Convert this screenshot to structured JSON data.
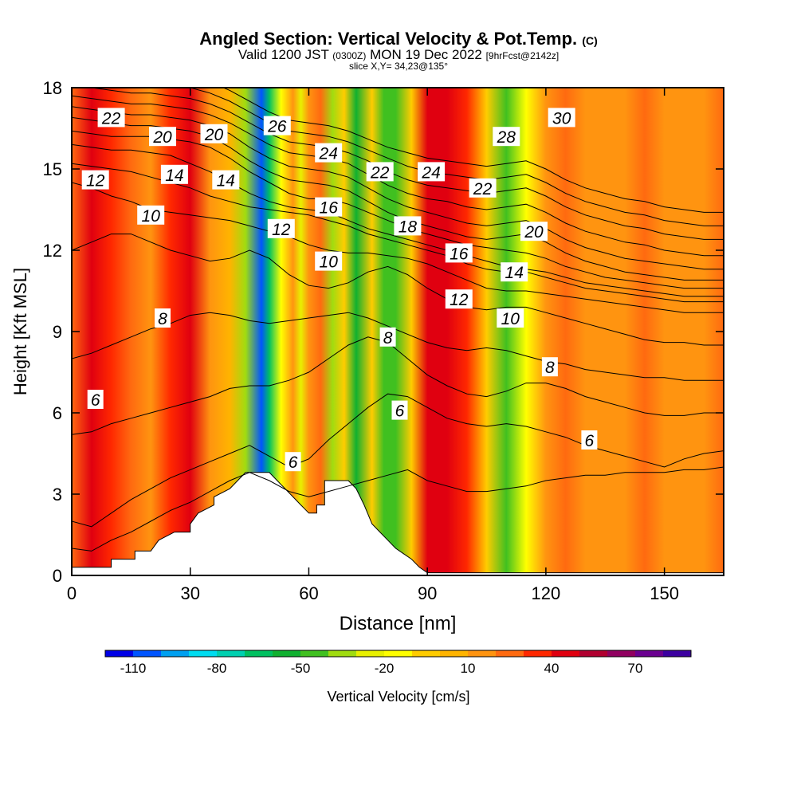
{
  "chart_data": {
    "type": "contour",
    "title": "Angled Section: Vertical Velocity & Pot.Temp.",
    "title_tag": "(C)",
    "subtitle": {
      "valid_prefix": "Valid 1200 JST",
      "valid_utc": "(0300Z)",
      "valid_date": "MON 19 Dec 2022",
      "forecast": "[9hrFcst@2142z]"
    },
    "slice_label": "slice X,Y= 34,23@135°",
    "xlabel": "Distance [nm]",
    "ylabel": "Height [Kft MSL]",
    "xlim": [
      0,
      165
    ],
    "ylim": [
      0,
      18
    ],
    "x_ticks": [
      0,
      30,
      60,
      90,
      120,
      150
    ],
    "y_ticks": [
      0,
      3,
      6,
      9,
      12,
      15,
      18
    ],
    "colorbar": {
      "label": "Vertical Velocity [cm/s]",
      "min": -120,
      "max": 90,
      "step": 10,
      "tick_labels": [
        -110,
        -80,
        -50,
        -20,
        10,
        40,
        70
      ],
      "colors": [
        "#0000e6",
        "#0055ff",
        "#00a0f0",
        "#00dcf0",
        "#00d0b0",
        "#00c060",
        "#10b030",
        "#40c020",
        "#a0dc10",
        "#e8f000",
        "#ffff00",
        "#ffcc00",
        "#ffb400",
        "#ff9410",
        "#ff6a10",
        "#ff2800",
        "#e00010",
        "#b00030",
        "#900060",
        "#6a0090",
        "#3c00a0"
      ]
    },
    "velocity_columns": [
      {
        "x": 0,
        "value": 20
      },
      {
        "x": 5,
        "value": 45
      },
      {
        "x": 10,
        "value": 35
      },
      {
        "x": 15,
        "value": 20
      },
      {
        "x": 20,
        "value": 15
      },
      {
        "x": 25,
        "value": 35
      },
      {
        "x": 30,
        "value": 40
      },
      {
        "x": 35,
        "value": 15
      },
      {
        "x": 40,
        "value": 5
      },
      {
        "x": 44,
        "value": -40
      },
      {
        "x": 48,
        "value": -110
      },
      {
        "x": 50,
        "value": -70
      },
      {
        "x": 53,
        "value": -20
      },
      {
        "x": 56,
        "value": 10
      },
      {
        "x": 58,
        "value": -25
      },
      {
        "x": 60,
        "value": 10
      },
      {
        "x": 63,
        "value": 20
      },
      {
        "x": 66,
        "value": -40
      },
      {
        "x": 69,
        "value": -5
      },
      {
        "x": 72,
        "value": -60
      },
      {
        "x": 76,
        "value": -10
      },
      {
        "x": 79,
        "value": -50
      },
      {
        "x": 82,
        "value": -45
      },
      {
        "x": 86,
        "value": -10
      },
      {
        "x": 90,
        "value": 40
      },
      {
        "x": 95,
        "value": 45
      },
      {
        "x": 100,
        "value": 30
      },
      {
        "x": 105,
        "value": -10
      },
      {
        "x": 110,
        "value": -45
      },
      {
        "x": 115,
        "value": -20
      },
      {
        "x": 120,
        "value": 15
      },
      {
        "x": 125,
        "value": 25
      },
      {
        "x": 130,
        "value": 15
      },
      {
        "x": 135,
        "value": 10
      },
      {
        "x": 140,
        "value": 15
      },
      {
        "x": 145,
        "value": 25
      },
      {
        "x": 150,
        "value": 15
      },
      {
        "x": 155,
        "value": 10
      },
      {
        "x": 160,
        "value": 15
      },
      {
        "x": 165,
        "value": 20
      }
    ],
    "terrain": {
      "x": [
        0,
        10,
        10,
        16,
        16,
        20,
        22,
        26,
        30,
        30,
        32,
        36,
        36,
        40,
        42,
        44,
        48,
        50,
        52,
        54,
        56,
        58,
        60,
        62,
        62,
        64,
        64,
        66,
        68,
        70,
        72,
        74,
        76,
        78,
        80,
        82,
        84,
        86,
        88,
        90,
        100,
        165
      ],
      "height": [
        0.3,
        0.3,
        0.6,
        0.6,
        0.9,
        0.9,
        1.3,
        1.6,
        1.6,
        1.9,
        2.3,
        2.6,
        2.9,
        3.2,
        3.5,
        3.8,
        3.8,
        3.8,
        3.5,
        3.2,
        2.9,
        2.6,
        2.3,
        2.3,
        2.6,
        2.6,
        3.5,
        3.5,
        3.5,
        3.5,
        3.2,
        2.6,
        1.9,
        1.6,
        1.3,
        1.0,
        0.8,
        0.6,
        0.3,
        0.1,
        0.1,
        0.1
      ]
    },
    "theta_lines": [
      {
        "theta": 5,
        "heights": [
          1.0,
          0.9,
          1.3,
          1.6,
          2.0,
          2.4,
          2.7,
          3.1,
          3.5,
          3.8,
          3.5,
          3.1,
          2.9,
          3.1,
          3.3,
          3.5,
          3.7,
          3.9,
          3.5,
          3.3,
          3.1,
          3.1,
          3.2,
          3.3,
          3.5,
          3.6,
          3.7,
          3.7,
          3.8,
          3.8,
          3.8,
          3.9,
          3.9,
          4.0
        ]
      },
      {
        "theta": 6,
        "heights": [
          2.0,
          1.8,
          2.3,
          2.8,
          3.2,
          3.6,
          3.9,
          4.2,
          4.5,
          4.8,
          4.4,
          4.0,
          4.3,
          5.0,
          5.6,
          6.2,
          6.7,
          6.6,
          6.2,
          5.8,
          5.6,
          5.5,
          5.6,
          5.5,
          5.3,
          5.1,
          4.8,
          4.6,
          4.4,
          4.2,
          4.0,
          4.3,
          4.5,
          4.6
        ]
      },
      {
        "theta": 7,
        "heights": [
          5.2,
          5.3,
          5.6,
          5.8,
          6.0,
          6.2,
          6.4,
          6.6,
          6.9,
          7.0,
          7.0,
          7.2,
          7.5,
          8.0,
          8.5,
          8.8,
          8.6,
          8.0,
          7.4,
          7.0,
          6.7,
          6.6,
          6.8,
          7.1,
          7.1,
          6.9,
          6.6,
          6.4,
          6.2,
          6.0,
          5.9,
          5.9,
          6.0,
          6.0
        ]
      },
      {
        "theta": 8,
        "heights": [
          8.0,
          8.2,
          8.5,
          8.8,
          9.1,
          9.3,
          9.6,
          9.7,
          9.6,
          9.4,
          9.3,
          9.4,
          9.5,
          9.6,
          9.7,
          9.5,
          9.2,
          8.9,
          8.6,
          8.4,
          8.3,
          8.4,
          8.3,
          8.1,
          7.9,
          7.8,
          7.6,
          7.5,
          7.4,
          7.3,
          7.3,
          7.2,
          7.2,
          7.2
        ]
      },
      {
        "theta": 10,
        "heights": [
          12.0,
          12.3,
          12.6,
          12.6,
          12.3,
          12.0,
          11.8,
          11.6,
          11.7,
          12.0,
          11.7,
          11.1,
          10.7,
          10.6,
          10.8,
          11.2,
          11.4,
          11.1,
          10.6,
          10.2,
          9.9,
          9.8,
          9.9,
          9.9,
          9.7,
          9.5,
          9.3,
          9.1,
          8.9,
          8.7,
          8.6,
          8.6,
          8.5,
          8.5
        ]
      },
      {
        "theta": 12,
        "heights": [
          14.5,
          14.3,
          14.0,
          13.8,
          13.5,
          13.4,
          13.3,
          13.2,
          13.1,
          12.9,
          12.7,
          12.5,
          12.2,
          12.0,
          11.9,
          11.9,
          11.8,
          11.7,
          11.5,
          11.2,
          10.9,
          10.6,
          10.5,
          10.5,
          10.4,
          10.3,
          10.2,
          10.1,
          10.0,
          9.9,
          9.8,
          9.7,
          9.7,
          9.7
        ]
      },
      {
        "theta": 14,
        "heights": [
          15.2,
          15.1,
          15.0,
          14.9,
          14.7,
          14.5,
          14.3,
          14.0,
          13.8,
          13.6,
          13.5,
          13.4,
          13.3,
          13.1,
          12.9,
          12.6,
          12.4,
          12.2,
          12.0,
          11.8,
          11.5,
          11.3,
          11.2,
          11.2,
          11.0,
          10.8,
          10.6,
          10.5,
          10.4,
          10.3,
          10.2,
          10.1,
          10.1,
          10.1
        ]
      },
      {
        "theta": 16,
        "heights": [
          15.9,
          15.8,
          15.7,
          15.7,
          15.6,
          15.5,
          15.2,
          14.9,
          14.5,
          14.1,
          13.8,
          13.6,
          13.5,
          13.4,
          13.1,
          12.8,
          12.6,
          12.4,
          12.2,
          12.0,
          11.8,
          11.6,
          11.4,
          11.3,
          11.2,
          11.0,
          10.8,
          10.7,
          10.6,
          10.5,
          10.4,
          10.3,
          10.3,
          10.3
        ]
      },
      {
        "theta": 18,
        "heights": [
          16.4,
          16.3,
          16.2,
          16.2,
          16.2,
          16.1,
          16.0,
          15.8,
          15.4,
          14.9,
          14.5,
          14.1,
          13.9,
          13.9,
          13.7,
          13.4,
          13.1,
          12.8,
          12.6,
          12.4,
          12.2,
          12.1,
          12.0,
          11.9,
          11.7,
          11.4,
          11.2,
          11.0,
          10.9,
          10.8,
          10.7,
          10.6,
          10.6,
          10.6
        ]
      },
      {
        "theta": 20,
        "heights": [
          16.9,
          16.8,
          16.7,
          16.6,
          16.6,
          16.5,
          16.4,
          16.2,
          15.8,
          15.3,
          14.9,
          14.6,
          14.5,
          14.4,
          14.2,
          13.8,
          13.4,
          13.1,
          12.9,
          12.7,
          12.5,
          12.4,
          12.5,
          12.6,
          12.3,
          11.9,
          11.6,
          11.4,
          11.2,
          11.1,
          11.0,
          10.9,
          10.9,
          10.9
        ]
      },
      {
        "theta": 22,
        "heights": [
          17.3,
          17.2,
          17.1,
          17.0,
          17.0,
          16.9,
          16.8,
          16.6,
          16.3,
          15.8,
          15.4,
          15.1,
          15.0,
          14.9,
          14.7,
          14.3,
          13.9,
          13.6,
          13.4,
          13.2,
          13.0,
          12.9,
          13.0,
          13.1,
          12.8,
          12.4,
          12.1,
          11.9,
          11.7,
          11.6,
          11.5,
          11.4,
          11.3,
          11.3
        ]
      },
      {
        "theta": 24,
        "heights": [
          17.7,
          17.6,
          17.5,
          17.4,
          17.4,
          17.3,
          17.2,
          17.0,
          16.7,
          16.3,
          15.9,
          15.6,
          15.5,
          15.4,
          15.2,
          14.8,
          14.4,
          14.1,
          13.9,
          13.8,
          13.6,
          13.5,
          13.6,
          13.7,
          13.4,
          13.0,
          12.7,
          12.5,
          12.3,
          12.2,
          12.0,
          11.9,
          11.8,
          11.8
        ]
      },
      {
        "theta": 26,
        "heights": [
          18.1,
          18.0,
          17.9,
          17.8,
          17.8,
          17.7,
          17.6,
          17.4,
          17.1,
          16.7,
          16.3,
          16.0,
          15.9,
          15.8,
          15.6,
          15.3,
          14.9,
          14.6,
          14.4,
          14.3,
          14.2,
          14.1,
          14.2,
          14.3,
          14.0,
          13.6,
          13.3,
          13.1,
          12.9,
          12.8,
          12.6,
          12.5,
          12.4,
          12.4
        ]
      },
      {
        "theta": 28,
        "heights": [
          18.5,
          18.4,
          18.3,
          18.2,
          18.2,
          18.1,
          18.0,
          17.8,
          17.5,
          17.1,
          16.7,
          16.4,
          16.3,
          16.2,
          16.0,
          15.7,
          15.4,
          15.1,
          14.9,
          14.8,
          14.7,
          14.6,
          14.7,
          14.8,
          14.5,
          14.1,
          13.8,
          13.6,
          13.4,
          13.3,
          13.1,
          13.0,
          12.9,
          12.9
        ]
      },
      {
        "theta": 30,
        "heights": [
          18.9,
          18.8,
          18.7,
          18.6,
          18.6,
          18.5,
          18.4,
          18.2,
          17.9,
          17.5,
          17.1,
          16.8,
          16.7,
          16.6,
          16.4,
          16.1,
          15.8,
          15.6,
          15.4,
          15.3,
          15.2,
          15.1,
          15.2,
          15.3,
          15.0,
          14.6,
          14.3,
          14.1,
          13.9,
          13.8,
          13.6,
          13.5,
          13.4,
          13.4
        ]
      }
    ],
    "contour_labels": [
      {
        "text": "22",
        "x": 10,
        "y": 16.9
      },
      {
        "text": "20",
        "x": 23,
        "y": 16.2
      },
      {
        "text": "20",
        "x": 36,
        "y": 16.3
      },
      {
        "text": "26",
        "x": 52,
        "y": 16.6
      },
      {
        "text": "24",
        "x": 65,
        "y": 15.6
      },
      {
        "text": "22",
        "x": 78,
        "y": 14.9
      },
      {
        "text": "24",
        "x": 91,
        "y": 14.9
      },
      {
        "text": "28",
        "x": 110,
        "y": 16.2
      },
      {
        "text": "30",
        "x": 124,
        "y": 16.9
      },
      {
        "text": "12",
        "x": 6,
        "y": 14.6
      },
      {
        "text": "14",
        "x": 26,
        "y": 14.8
      },
      {
        "text": "14",
        "x": 39,
        "y": 14.6
      },
      {
        "text": "22",
        "x": 104,
        "y": 14.3
      },
      {
        "text": "10",
        "x": 20,
        "y": 13.3
      },
      {
        "text": "16",
        "x": 65,
        "y": 13.6
      },
      {
        "text": "18",
        "x": 85,
        "y": 12.9
      },
      {
        "text": "12",
        "x": 53,
        "y": 12.8
      },
      {
        "text": "20",
        "x": 117,
        "y": 12.7
      },
      {
        "text": "16",
        "x": 98,
        "y": 11.9
      },
      {
        "text": "10",
        "x": 65,
        "y": 11.6
      },
      {
        "text": "14",
        "x": 112,
        "y": 11.2
      },
      {
        "text": "12",
        "x": 98,
        "y": 10.2
      },
      {
        "text": "8",
        "x": 23,
        "y": 9.5
      },
      {
        "text": "10",
        "x": 111,
        "y": 9.5
      },
      {
        "text": "8",
        "x": 80,
        "y": 8.8
      },
      {
        "text": "8",
        "x": 121,
        "y": 7.7
      },
      {
        "text": "6",
        "x": 6,
        "y": 6.5
      },
      {
        "text": "6",
        "x": 83,
        "y": 6.1
      },
      {
        "text": "6",
        "x": 131,
        "y": 5.0
      },
      {
        "text": "6",
        "x": 56,
        "y": 4.2
      }
    ]
  }
}
